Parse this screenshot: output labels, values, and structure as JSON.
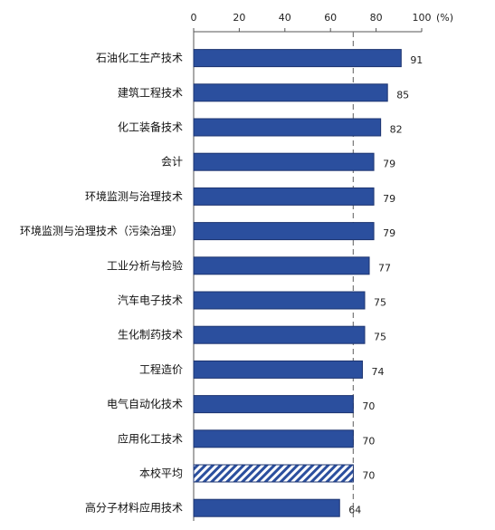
{
  "chart_data": {
    "type": "bar",
    "orientation": "horizontal",
    "unit_label": "(%)",
    "xlim": [
      0,
      100
    ],
    "ticks": [
      0,
      20,
      40,
      60,
      80,
      100
    ],
    "tick_labels": [
      "0",
      "20",
      "40",
      "60",
      "80",
      "100"
    ],
    "categories": [
      "石油化工生产技术",
      "建筑工程技术",
      "化工装备技术",
      "会计",
      "环境监测与治理技术",
      "环境监测与治理技术（污染治理）",
      "工业分析与检验",
      "汽车电子技术",
      "生化制药技术",
      "工程造价",
      "电气自动化技术",
      "应用化工技术",
      "本校平均",
      "高分子材料应用技术"
    ],
    "values": [
      91,
      85,
      82,
      79,
      79,
      79,
      77,
      75,
      75,
      74,
      70,
      70,
      70,
      64
    ],
    "value_labels": [
      "91",
      "85",
      "82",
      "79",
      "79",
      "79",
      "77",
      "75",
      "75",
      "74",
      "70",
      "70",
      "70",
      "64"
    ],
    "highlight_category": "本校平均",
    "reference_line": 70,
    "grid": false,
    "colors": {
      "bar": "#2b4f9e",
      "bar_edge": "#1d3470",
      "reference_line": "#7f7f7f"
    }
  }
}
